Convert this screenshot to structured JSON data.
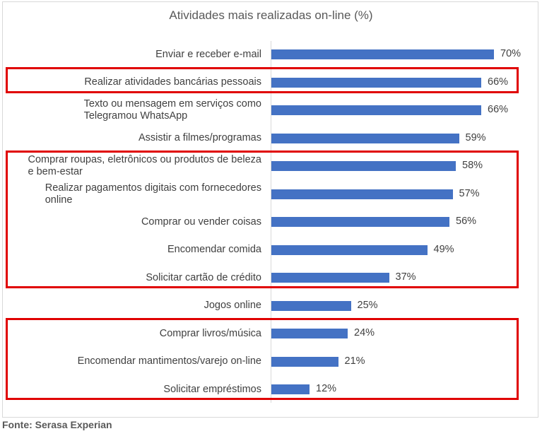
{
  "chart_data": {
    "type": "bar",
    "orientation": "horizontal",
    "title": "Atividades mais realizadas on-line (%)",
    "xlim": [
      0,
      100
    ],
    "categories": [
      {
        "label_lines": [
          "Enviar e receber e-mail"
        ],
        "value": 70,
        "value_label": "70%",
        "highlight": false
      },
      {
        "label_lines": [
          "Realizar atividades bancárias pessoais"
        ],
        "value": 66,
        "value_label": "66%",
        "highlight": true
      },
      {
        "label_lines": [
          "Texto ou mensagem em serviços como",
          "Telegramou WhatsApp"
        ],
        "value": 66,
        "value_label": "66%",
        "highlight": false
      },
      {
        "label_lines": [
          "Assistir a filmes/programas"
        ],
        "value": 59,
        "value_label": "59%",
        "highlight": false
      },
      {
        "label_lines": [
          "Comprar roupas, eletrônicos ou produtos de beleza",
          "e bem-estar"
        ],
        "value": 58,
        "value_label": "58%",
        "highlight": true
      },
      {
        "label_lines": [
          "Realizar pagamentos digitais com fornecedores",
          "online"
        ],
        "value": 57,
        "value_label": "57%",
        "highlight": true
      },
      {
        "label_lines": [
          "Comprar ou vender coisas"
        ],
        "value": 56,
        "value_label": "56%",
        "highlight": true
      },
      {
        "label_lines": [
          "Encomendar comida"
        ],
        "value": 49,
        "value_label": "49%",
        "highlight": true
      },
      {
        "label_lines": [
          "Solicitar cartão de crédito"
        ],
        "value": 37,
        "value_label": "37%",
        "highlight": true
      },
      {
        "label_lines": [
          "Jogos online"
        ],
        "value": 25,
        "value_label": "25%",
        "highlight": false
      },
      {
        "label_lines": [
          "Comprar livros/música"
        ],
        "value": 24,
        "value_label": "24%",
        "highlight": true
      },
      {
        "label_lines": [
          "Encomendar mantimentos/varejo on-line"
        ],
        "value": 21,
        "value_label": "21%",
        "highlight": true
      },
      {
        "label_lines": [
          "Solicitar empréstimos"
        ],
        "value": 12,
        "value_label": "12%",
        "highlight": true
      }
    ],
    "highlight_groups": [
      [
        1,
        1
      ],
      [
        4,
        8
      ],
      [
        10,
        12
      ]
    ],
    "bar_color": "#4472c4",
    "highlight_color": "#e00000"
  },
  "source": "Fonte: Serasa Experian"
}
